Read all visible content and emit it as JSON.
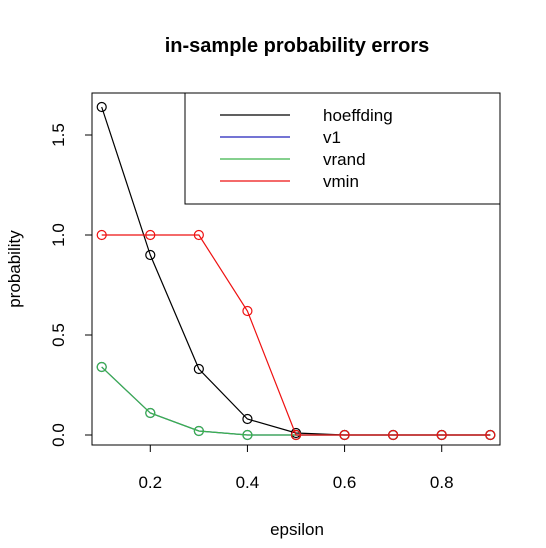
{
  "chart_data": {
    "type": "line",
    "title": "in-sample probability errors",
    "xlabel": "epsilon",
    "ylabel": "probability",
    "x": [
      0.1,
      0.2,
      0.3,
      0.4,
      0.5,
      0.6,
      0.7,
      0.8,
      0.9
    ],
    "xlim": [
      0.08,
      0.92
    ],
    "ylim": [
      -0.05,
      1.71
    ],
    "xticks": [
      0.2,
      0.4,
      0.6,
      0.8
    ],
    "xtick_labels": [
      "0.2",
      "0.4",
      "0.6",
      "0.8"
    ],
    "yticks": [
      0.0,
      0.5,
      1.0,
      1.5
    ],
    "ytick_labels": [
      "0.0",
      "0.5",
      "1.0",
      "1.5"
    ],
    "grid": false,
    "legend_position": "top-right",
    "series": [
      {
        "name": "hoeffding",
        "color": "#000000",
        "values": [
          1.64,
          0.9,
          0.33,
          0.08,
          0.01,
          0.0,
          0.0,
          0.0,
          0.0
        ]
      },
      {
        "name": "v1",
        "color": "#2222bb",
        "values": [
          0.34,
          0.11,
          0.02,
          0.0,
          0.0,
          0.0,
          0.0,
          0.0,
          0.0
        ]
      },
      {
        "name": "vrand",
        "color": "#3cb44b",
        "values": [
          0.34,
          0.11,
          0.02,
          0.0,
          0.0,
          0.0,
          0.0,
          0.0,
          0.0
        ]
      },
      {
        "name": "vmin",
        "color": "#ee1111",
        "values": [
          1.0,
          1.0,
          1.0,
          0.62,
          0.0,
          0.0,
          0.0,
          0.0,
          0.0
        ]
      }
    ]
  }
}
